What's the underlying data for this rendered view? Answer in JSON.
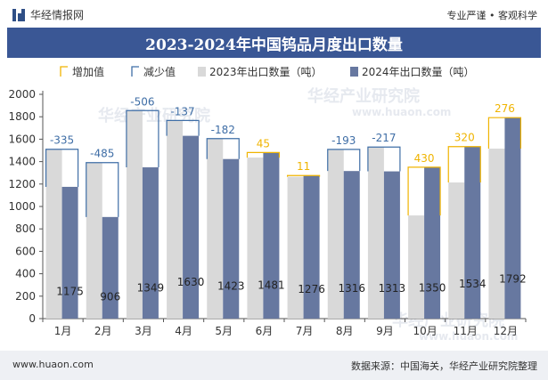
{
  "header": {
    "logo_text": "华经情报网",
    "tagline": "专业严谨 • 客观科学"
  },
  "title": "2023-2024年中国钨品月度出口数量",
  "footer": {
    "url": "www.huaon.com",
    "source": "数据来源：中国海关，华经产业研究院整理"
  },
  "watermark": {
    "cn": "华经产业研究院",
    "url": "www.huaon.com"
  },
  "colors": {
    "title_bg": "#3a5795",
    "bar_2023": "#d9d9d9",
    "bar_2024": "#6778a0",
    "increase": "#f0b400",
    "decrease": "#3f6ea6"
  },
  "chart_data": {
    "type": "bar",
    "categories": [
      "1月",
      "2月",
      "3月",
      "4月",
      "5月",
      "6月",
      "7月",
      "8月",
      "9月",
      "10月",
      "11月",
      "12月"
    ],
    "series": [
      {
        "name": "2023年出口数量（吨）",
        "values": [
          1510,
          1391,
          1855,
          1767,
          1605,
          1436,
          1265,
          1509,
          1530,
          920,
          1214,
          1516
        ]
      },
      {
        "name": "2024年出口数量（吨）",
        "values": [
          1175,
          906,
          1349,
          1630,
          1423,
          1481,
          1276,
          1316,
          1313,
          1350,
          1534,
          1792
        ]
      }
    ],
    "changes": [
      -335,
      -485,
      -506,
      -137,
      -182,
      45,
      11,
      -193,
      -217,
      430,
      320,
      276
    ],
    "change_labels": [
      "-335",
      "-485",
      "-506",
      "-137",
      "-182",
      "45",
      "11",
      "-193",
      "-217",
      "430",
      "320",
      "276"
    ],
    "legend": [
      {
        "key": "increase",
        "label": "增加值"
      },
      {
        "key": "decrease",
        "label": "减少值"
      },
      {
        "key": "bar_2023",
        "label": "2023年出口数量（吨）"
      },
      {
        "key": "bar_2024",
        "label": "2024年出口数量（吨）"
      }
    ],
    "legend_position": "top",
    "ylim": [
      0,
      2000
    ],
    "yticks": [
      0,
      200,
      400,
      600,
      800,
      1000,
      1200,
      1400,
      1600,
      1800,
      2000
    ],
    "xlabel": "",
    "ylabel": "",
    "grid": false
  }
}
